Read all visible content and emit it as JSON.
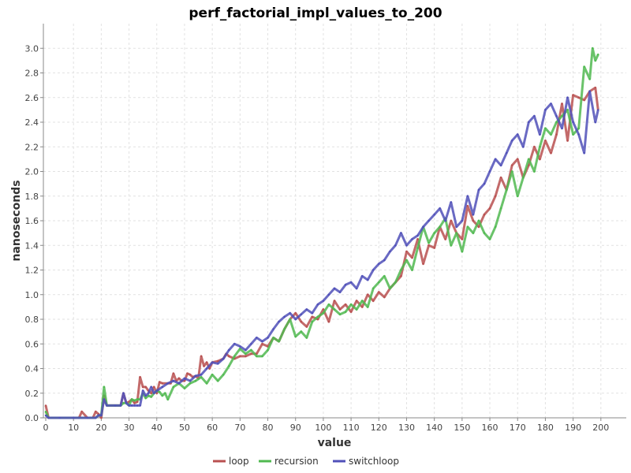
{
  "chart_data": {
    "type": "line",
    "title": "perf_factorial_impl_values_to_200",
    "xlabel": "value",
    "ylabel": "nanoseconds",
    "xlim": [
      0,
      210
    ],
    "ylim": [
      0,
      3.2
    ],
    "x_ticks": [
      "0",
      "10",
      "20",
      "30",
      "40",
      "50",
      "60",
      "70",
      "80",
      "90",
      "100",
      "110",
      "120",
      "130",
      "140",
      "150",
      "160",
      "170",
      "180",
      "190",
      "200"
    ],
    "y_ticks": [
      "0.0",
      "0.2",
      "0.4",
      "0.6",
      "0.8",
      "1.0",
      "1.2",
      "1.4",
      "1.6",
      "1.8",
      "2.0",
      "2.2",
      "2.4",
      "2.6",
      "2.8",
      "3.0"
    ],
    "grid": true,
    "legend_position": "bottom",
    "series": [
      {
        "name": "loop",
        "color": "#b95050",
        "x": [
          0,
          1,
          5,
          10,
          12,
          13,
          15,
          17,
          18,
          19,
          20,
          21,
          22,
          25,
          27,
          28,
          29,
          30,
          31,
          32,
          33,
          34,
          35,
          36,
          37,
          38,
          39,
          40,
          41,
          42,
          44,
          45,
          46,
          47,
          48,
          49,
          50,
          51,
          52,
          53,
          54,
          55,
          56,
          57,
          58,
          59,
          60,
          62,
          64,
          65,
          66,
          68,
          70,
          72,
          74,
          76,
          78,
          80,
          82,
          84,
          86,
          88,
          90,
          92,
          94,
          96,
          98,
          100,
          102,
          104,
          106,
          108,
          110,
          112,
          114,
          116,
          118,
          120,
          122,
          124,
          126,
          128,
          130,
          132,
          134,
          136,
          138,
          140,
          142,
          144,
          146,
          148,
          150,
          152,
          154,
          156,
          158,
          160,
          162,
          164,
          166,
          168,
          170,
          172,
          174,
          176,
          178,
          180,
          182,
          184,
          186,
          188,
          190,
          192,
          194,
          196,
          198,
          199
        ],
        "y": [
          0.1,
          0.0,
          0.0,
          0.0,
          0.0,
          0.05,
          0.0,
          0.0,
          0.05,
          0.03,
          0.0,
          0.18,
          0.1,
          0.1,
          0.1,
          0.2,
          0.12,
          0.13,
          0.15,
          0.12,
          0.13,
          0.33,
          0.25,
          0.25,
          0.22,
          0.2,
          0.25,
          0.2,
          0.29,
          0.28,
          0.28,
          0.28,
          0.36,
          0.3,
          0.32,
          0.3,
          0.3,
          0.36,
          0.35,
          0.33,
          0.34,
          0.32,
          0.5,
          0.42,
          0.45,
          0.4,
          0.45,
          0.46,
          0.48,
          0.52,
          0.5,
          0.48,
          0.5,
          0.5,
          0.52,
          0.52,
          0.6,
          0.58,
          0.65,
          0.62,
          0.72,
          0.8,
          0.85,
          0.78,
          0.74,
          0.82,
          0.8,
          0.88,
          0.78,
          0.95,
          0.88,
          0.92,
          0.86,
          0.95,
          0.9,
          1.0,
          0.95,
          1.02,
          0.98,
          1.05,
          1.1,
          1.15,
          1.35,
          1.3,
          1.45,
          1.25,
          1.4,
          1.38,
          1.55,
          1.45,
          1.6,
          1.5,
          1.45,
          1.72,
          1.6,
          1.55,
          1.65,
          1.7,
          1.8,
          1.95,
          1.85,
          2.05,
          2.1,
          1.95,
          2.05,
          2.2,
          2.1,
          2.25,
          2.15,
          2.3,
          2.55,
          2.25,
          2.62,
          2.6,
          2.58,
          2.65,
          2.68,
          2.5
        ]
      },
      {
        "name": "recursion",
        "color": "#50b950",
        "x": [
          0,
          1,
          5,
          10,
          15,
          18,
          19,
          20,
          21,
          22,
          25,
          27,
          28,
          29,
          30,
          31,
          32,
          33,
          34,
          35,
          36,
          37,
          38,
          39,
          40,
          41,
          42,
          43,
          44,
          46,
          48,
          50,
          52,
          54,
          56,
          58,
          60,
          62,
          64,
          66,
          68,
          70,
          72,
          74,
          76,
          78,
          80,
          82,
          84,
          86,
          88,
          90,
          92,
          94,
          96,
          98,
          100,
          102,
          104,
          106,
          108,
          110,
          112,
          114,
          116,
          118,
          120,
          122,
          124,
          126,
          128,
          130,
          132,
          134,
          136,
          138,
          140,
          142,
          144,
          146,
          148,
          150,
          152,
          154,
          156,
          158,
          160,
          162,
          164,
          166,
          168,
          170,
          172,
          174,
          176,
          178,
          180,
          182,
          184,
          186,
          188,
          190,
          192,
          194,
          196,
          197,
          198,
          199
        ],
        "y": [
          0.05,
          0.0,
          0.0,
          0.0,
          0.0,
          0.0,
          0.02,
          0.02,
          0.25,
          0.1,
          0.1,
          0.1,
          0.12,
          0.12,
          0.1,
          0.15,
          0.14,
          0.15,
          0.15,
          0.2,
          0.16,
          0.18,
          0.17,
          0.2,
          0.22,
          0.21,
          0.18,
          0.2,
          0.15,
          0.25,
          0.28,
          0.24,
          0.28,
          0.3,
          0.33,
          0.28,
          0.35,
          0.3,
          0.35,
          0.42,
          0.5,
          0.56,
          0.52,
          0.55,
          0.5,
          0.5,
          0.55,
          0.65,
          0.62,
          0.72,
          0.8,
          0.66,
          0.7,
          0.65,
          0.78,
          0.82,
          0.85,
          0.92,
          0.88,
          0.84,
          0.86,
          0.92,
          0.88,
          0.95,
          0.9,
          1.05,
          1.1,
          1.15,
          1.05,
          1.1,
          1.2,
          1.28,
          1.2,
          1.38,
          1.55,
          1.42,
          1.5,
          1.55,
          1.62,
          1.4,
          1.5,
          1.35,
          1.55,
          1.5,
          1.6,
          1.5,
          1.45,
          1.55,
          1.7,
          1.85,
          2.0,
          1.8,
          1.95,
          2.1,
          2.0,
          2.2,
          2.35,
          2.3,
          2.4,
          2.45,
          2.5,
          2.3,
          2.35,
          2.85,
          2.75,
          3.0,
          2.9,
          2.95
        ]
      },
      {
        "name": "switchloop",
        "color": "#5050b9",
        "x": [
          0,
          1,
          5,
          10,
          15,
          18,
          19,
          20,
          21,
          22,
          25,
          27,
          28,
          29,
          30,
          31,
          32,
          33,
          34,
          35,
          36,
          37,
          38,
          39,
          40,
          42,
          44,
          46,
          48,
          50,
          52,
          54,
          56,
          58,
          60,
          62,
          64,
          66,
          68,
          70,
          72,
          74,
          76,
          78,
          80,
          82,
          84,
          86,
          88,
          90,
          92,
          94,
          96,
          98,
          100,
          102,
          104,
          106,
          108,
          110,
          112,
          114,
          116,
          118,
          120,
          122,
          124,
          126,
          128,
          130,
          132,
          134,
          136,
          138,
          140,
          142,
          144,
          146,
          148,
          150,
          152,
          154,
          156,
          158,
          160,
          162,
          164,
          166,
          168,
          170,
          172,
          174,
          176,
          178,
          180,
          182,
          184,
          186,
          188,
          190,
          192,
          194,
          196,
          198,
          199
        ],
        "y": [
          0.02,
          0.0,
          0.0,
          0.0,
          0.0,
          0.0,
          0.02,
          0.02,
          0.15,
          0.1,
          0.1,
          0.1,
          0.2,
          0.12,
          0.1,
          0.1,
          0.1,
          0.1,
          0.1,
          0.22,
          0.18,
          0.2,
          0.25,
          0.2,
          0.22,
          0.25,
          0.28,
          0.3,
          0.28,
          0.32,
          0.3,
          0.34,
          0.35,
          0.4,
          0.45,
          0.44,
          0.48,
          0.55,
          0.6,
          0.58,
          0.55,
          0.6,
          0.65,
          0.62,
          0.65,
          0.72,
          0.78,
          0.82,
          0.85,
          0.8,
          0.84,
          0.88,
          0.85,
          0.92,
          0.95,
          1.0,
          1.05,
          1.02,
          1.08,
          1.1,
          1.05,
          1.15,
          1.12,
          1.2,
          1.25,
          1.28,
          1.35,
          1.4,
          1.5,
          1.4,
          1.45,
          1.48,
          1.55,
          1.6,
          1.65,
          1.7,
          1.6,
          1.75,
          1.55,
          1.6,
          1.8,
          1.65,
          1.85,
          1.9,
          2.0,
          2.1,
          2.05,
          2.15,
          2.25,
          2.3,
          2.2,
          2.4,
          2.45,
          2.3,
          2.5,
          2.55,
          2.45,
          2.35,
          2.6,
          2.4,
          2.3,
          2.15,
          2.65,
          2.4,
          2.5
        ]
      }
    ]
  }
}
